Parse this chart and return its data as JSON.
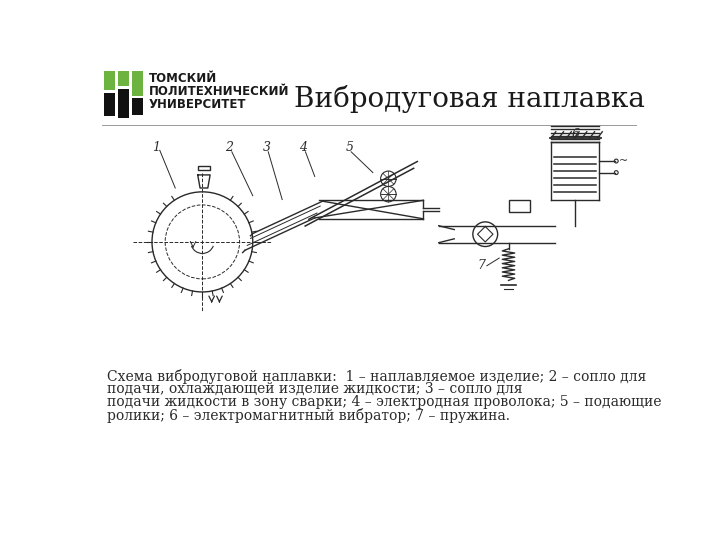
{
  "title": "Вибродуговая наплавка",
  "caption_line1": "Схема вибродуговой наплавки:  1 – наплавляемое изделие; 2 – сопло для",
  "caption_line2": "подачи, охлаждающей изделие жидкости; 3 – сопло для",
  "caption_line3": "подачи жидкости в зону сварки; 4 – электродная проволока; 5 – подающие",
  "caption_line4": "ролики; 6 – электромагнитный вибратор; 7 – пружина.",
  "bg_color": "#ffffff",
  "text_color": "#1a1a1a",
  "diagram_color": "#2a2a2a",
  "logo_green": "#6db33f",
  "logo_black": "#111111",
  "title_fontsize": 20,
  "caption_fontsize": 10
}
